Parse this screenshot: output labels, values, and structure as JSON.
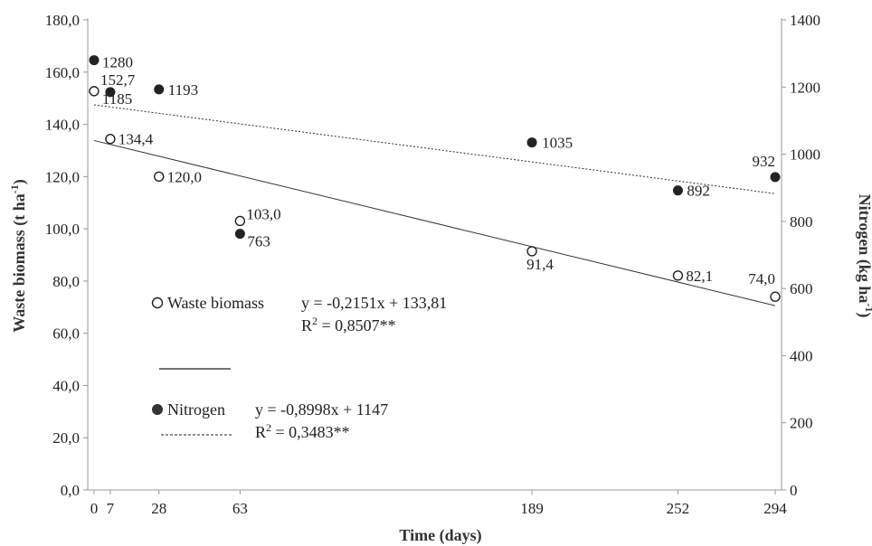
{
  "chart_data": {
    "type": "scatter",
    "x_label": "Time (days)",
    "y_left": {
      "label_main": "Waste biomass (t ha",
      "label_sup": "-1",
      "label_end": ")",
      "ylim": [
        0,
        180
      ],
      "ticks": [
        "0,0",
        "20,0",
        "40,0",
        "60,0",
        "80,0",
        "100,0",
        "120,0",
        "140,0",
        "160,0",
        "180,0"
      ]
    },
    "y_right": {
      "label_main": "Nitrogen (kg ha",
      "label_sup": "-1",
      "label_end": ")",
      "ylim": [
        0,
        1400
      ],
      "ticks": [
        "0",
        "200",
        "400",
        "600",
        "800",
        "1000",
        "1200",
        "1400"
      ]
    },
    "x_ticks": [
      "0",
      "7",
      "28",
      "63",
      "189",
      "252",
      "294"
    ],
    "x_values": [
      0,
      7,
      28,
      63,
      189,
      252,
      294
    ],
    "series": [
      {
        "name": "Waste biomass",
        "axis": "left",
        "marker": "open-circle",
        "x": [
          0,
          7,
          28,
          63,
          189,
          252,
          294
        ],
        "y": [
          152.7,
          134.4,
          120.0,
          103.0,
          91.4,
          82.1,
          74.0
        ],
        "labels": [
          "152,7",
          "134,4",
          "120,0",
          "103,0",
          "91,4",
          "82,1",
          "74,0"
        ],
        "trend": {
          "slope": -0.2151,
          "intercept": 133.81,
          "style": "solid"
        }
      },
      {
        "name": "Nitrogen",
        "axis": "right",
        "marker": "filled-circle",
        "x": [
          0,
          7,
          28,
          63,
          189,
          252,
          294
        ],
        "y": [
          1280,
          1185,
          1193,
          763,
          1035,
          892,
          932
        ],
        "labels": [
          "1280",
          "1185",
          "1193",
          "763",
          "1035",
          "892",
          "932"
        ],
        "trend": {
          "slope": -0.8998,
          "intercept": 1147,
          "style": "dotted"
        }
      }
    ],
    "legend": [
      {
        "name": "Waste biomass",
        "equation": "y = -0,2151x + 133,81",
        "r2_prefix": "R",
        "r2_sup": "2",
        "r2_value": " = 0,8507**"
      },
      {
        "name": "Nitrogen",
        "equation": "y = -0,8998x + 1147",
        "r2_prefix": "R",
        "r2_sup": "2",
        "r2_value": " = 0,3483**"
      }
    ],
    "colors": {
      "axis": "#999999",
      "marker": "#222222",
      "text": "#222222"
    }
  }
}
